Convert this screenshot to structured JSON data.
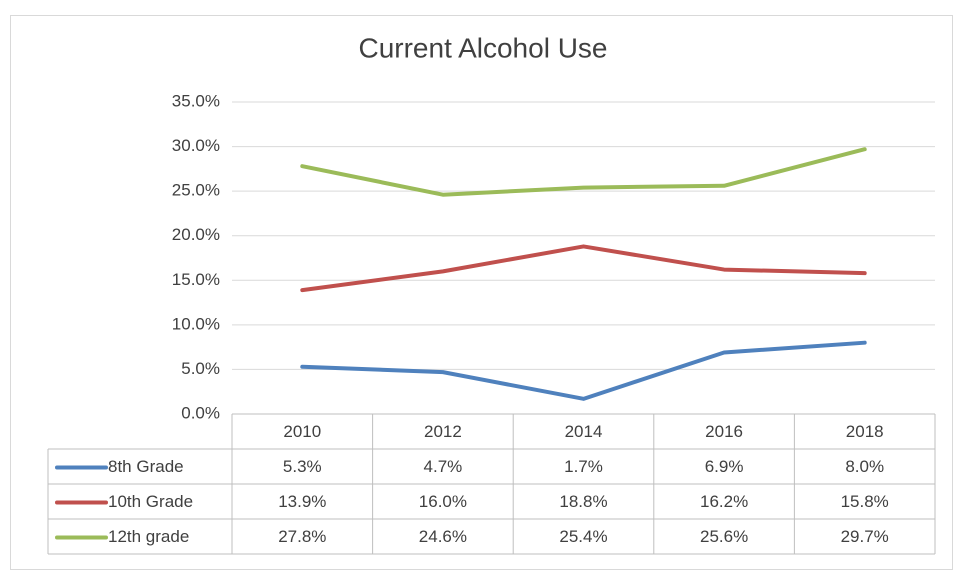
{
  "chart_data": {
    "type": "line",
    "title": "Current Alcohol Use",
    "categories": [
      "2010",
      "2012",
      "2014",
      "2016",
      "2018"
    ],
    "series": [
      {
        "name": "8th Grade",
        "color": "#4f81bd",
        "values": [
          5.3,
          4.7,
          1.7,
          6.9,
          8.0
        ],
        "value_labels": [
          "5.3%",
          "4.7%",
          "1.7%",
          "6.9%",
          "8.0%"
        ]
      },
      {
        "name": "10th Grade",
        "color": "#c0504d",
        "values": [
          13.9,
          16.0,
          18.8,
          16.2,
          15.8
        ],
        "value_labels": [
          "13.9%",
          "16.0%",
          "18.8%",
          "16.2%",
          "15.8%"
        ]
      },
      {
        "name": "12th grade",
        "color": "#9bbb59",
        "values": [
          27.8,
          24.6,
          25.4,
          25.6,
          29.7
        ],
        "value_labels": [
          "27.8%",
          "24.6%",
          "25.4%",
          "25.6%",
          "29.7%"
        ]
      }
    ],
    "ylim": [
      0,
      35
    ],
    "yticks": [
      {
        "value": 0,
        "label": "0.0%"
      },
      {
        "value": 5,
        "label": "5.0%"
      },
      {
        "value": 10,
        "label": "10.0%"
      },
      {
        "value": 15,
        "label": "15.0%"
      },
      {
        "value": 20,
        "label": "20.0%"
      },
      {
        "value": 25,
        "label": "25.0%"
      },
      {
        "value": 30,
        "label": "30.0%"
      },
      {
        "value": 35,
        "label": "35.0%"
      }
    ],
    "grid": true
  }
}
